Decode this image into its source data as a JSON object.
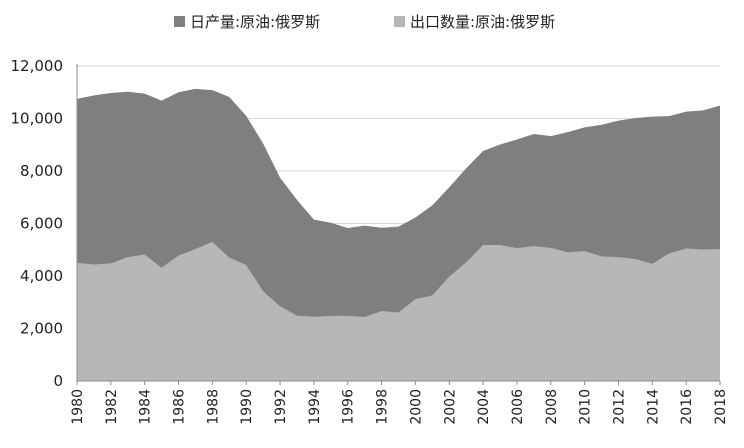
{
  "chart_data": {
    "type": "area",
    "title": "",
    "xlabel": "",
    "ylabel": "",
    "ylim": [
      0,
      12000
    ],
    "yticks": [
      0,
      2000,
      4000,
      6000,
      8000,
      10000,
      12000
    ],
    "ytick_labels": [
      "0",
      "2,000",
      "4,000",
      "6,000",
      "8,000",
      "10,000",
      "12,000"
    ],
    "xlim": [
      1980,
      2018
    ],
    "xtick_labels": [
      "1980",
      "1982",
      "1984",
      "1986",
      "1988",
      "1990",
      "1992",
      "1994",
      "1996",
      "1998",
      "2000",
      "2002",
      "2004",
      "2006",
      "2008",
      "2010",
      "2012",
      "2014",
      "2016",
      "2018"
    ],
    "grid": "horizontal",
    "legend": "top",
    "x": [
      1980,
      1981,
      1982,
      1983,
      1984,
      1985,
      1986,
      1987,
      1988,
      1989,
      1990,
      1991,
      1992,
      1993,
      1994,
      1995,
      1996,
      1997,
      1998,
      1999,
      2000,
      2001,
      2002,
      2003,
      2004,
      2005,
      2006,
      2007,
      2008,
      2009,
      2010,
      2011,
      2012,
      2013,
      2014,
      2015,
      2016,
      2017,
      2018
    ],
    "series": [
      {
        "name": "日产量:原油:俄罗斯",
        "color": "#7f7f7f",
        "values": [
          10750,
          10880,
          10970,
          11020,
          10950,
          10680,
          11000,
          11130,
          11080,
          10820,
          10100,
          9050,
          7750,
          6900,
          6150,
          6030,
          5830,
          5920,
          5840,
          5880,
          6230,
          6690,
          7380,
          8100,
          8760,
          9010,
          9200,
          9410,
          9330,
          9480,
          9660,
          9760,
          9920,
          10020,
          10070,
          10090,
          10260,
          10310,
          10490
        ]
      },
      {
        "name": "出口数量:原油:俄罗斯",
        "color": "#b7b7b7",
        "values": [
          4500,
          4440,
          4480,
          4720,
          4820,
          4320,
          4780,
          5030,
          5300,
          4700,
          4420,
          3420,
          2850,
          2490,
          2450,
          2480,
          2480,
          2440,
          2660,
          2610,
          3120,
          3260,
          3980,
          4520,
          5180,
          5180,
          5060,
          5140,
          5070,
          4900,
          4950,
          4750,
          4720,
          4650,
          4460,
          4860,
          5050,
          5010,
          5030
        ]
      }
    ]
  }
}
